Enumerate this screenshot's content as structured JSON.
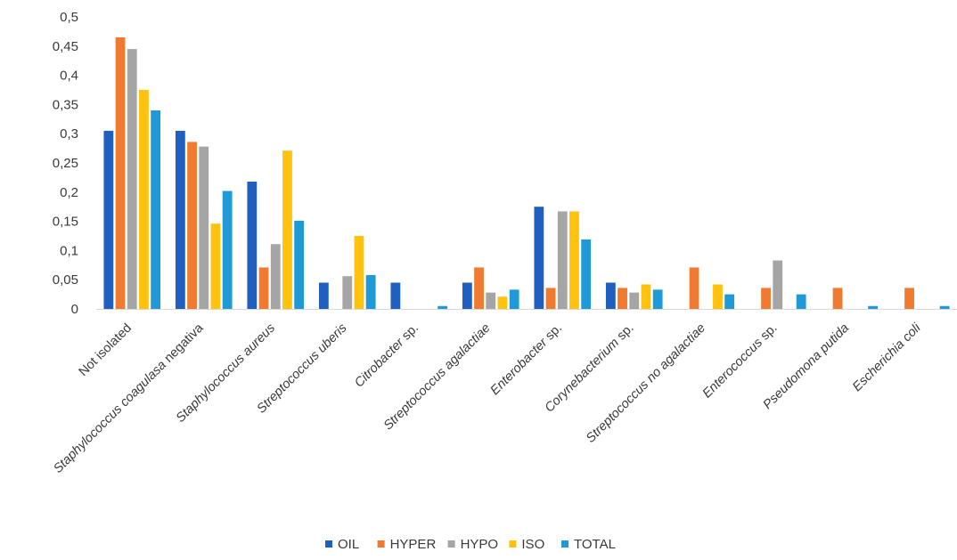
{
  "chart_data": {
    "type": "bar",
    "categories": [
      "Not isolated",
      "Staphylococcus coagulasa negativa",
      "Staphylococcus aureus",
      "Streptococcus uberis",
      "Citrobacter sp.",
      "Streptococcus agalactiae",
      "Enterobacter sp.",
      "Corynebacterium  sp.",
      "Streptococcus no agalactiae",
      "Enterococcus sp.",
      "Pseudomona putida",
      "Escherichia coli"
    ],
    "series": [
      {
        "name": "OIL",
        "color": "#1f5fbf",
        "values": [
          0.305,
          0.305,
          0.218,
          0.045,
          0.045,
          0.045,
          0.175,
          0.045,
          0.0,
          0.0,
          0.0,
          0.0
        ]
      },
      {
        "name": "HYPER",
        "color": "#f07a2f",
        "values": [
          0.465,
          0.286,
          0.071,
          0.0,
          0.0,
          0.071,
          0.036,
          0.036,
          0.071,
          0.036,
          0.036,
          0.036
        ]
      },
      {
        "name": "HYPO",
        "color": "#a5a5a5",
        "values": [
          0.445,
          0.278,
          0.111,
          0.056,
          0.0,
          0.028,
          0.167,
          0.028,
          0.0,
          0.083,
          0.0,
          0.0
        ]
      },
      {
        "name": "ISO",
        "color": "#ffc20e",
        "values": [
          0.375,
          0.146,
          0.271,
          0.125,
          0.0,
          0.021,
          0.167,
          0.042,
          0.042,
          0.0,
          0.0,
          0.0
        ]
      },
      {
        "name": "TOTAL",
        "color": "#1f9ad6",
        "values": [
          0.34,
          0.202,
          0.151,
          0.058,
          0.005,
          0.033,
          0.119,
          0.033,
          0.025,
          0.025,
          0.005,
          0.005
        ]
      }
    ],
    "ylim": [
      0,
      0.5
    ],
    "yticks": [
      "0",
      "0,05",
      "0,1",
      "0,15",
      "0,2",
      "0,25",
      "0,3",
      "0,35",
      "0,4",
      "0,45",
      "0,5"
    ],
    "italic_parts": [
      [],
      [
        "Staphylococcus coagulasa",
        " negativa"
      ],
      [
        "Staphylococcus aureus",
        ""
      ],
      [
        "Streptococcus uberis",
        ""
      ],
      [
        "Citrobacter",
        " sp."
      ],
      [
        "Streptococcus agalactiae",
        ""
      ],
      [
        "Enterobacter",
        " sp."
      ],
      [
        "Corynebacterium",
        "  sp."
      ],
      [
        "Streptococcus no agalactiae",
        ""
      ],
      [
        "Enterococcus",
        " sp."
      ],
      [
        "Pseudomona putida",
        ""
      ],
      [
        "Escherichia coli",
        ""
      ]
    ],
    "grid": false,
    "legend_position": "bottom-center",
    "title": "",
    "xlabel": "",
    "ylabel": ""
  }
}
